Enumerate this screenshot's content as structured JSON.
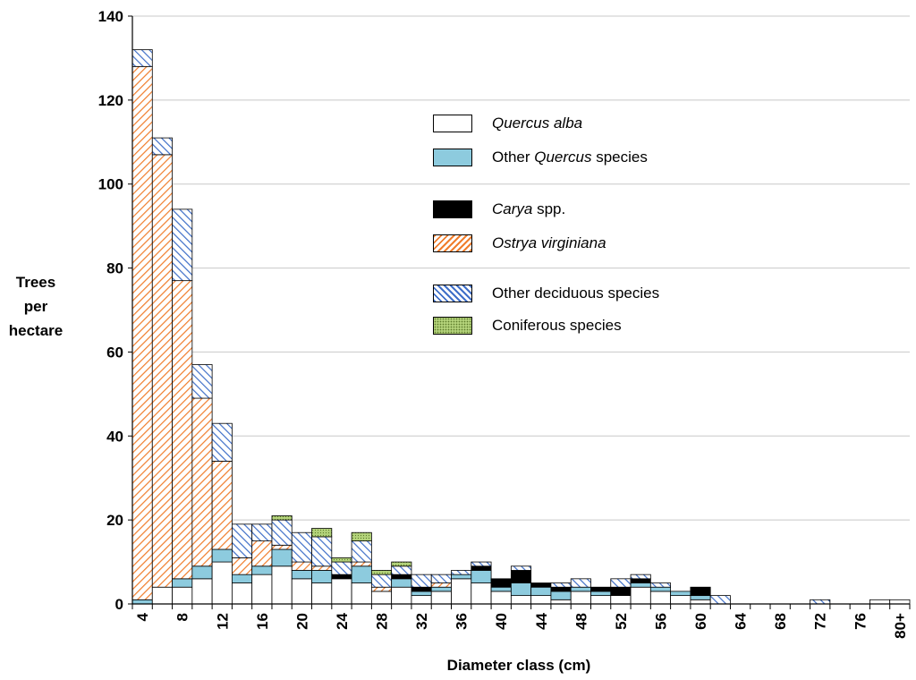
{
  "chart_data": {
    "type": "bar",
    "stacked": true,
    "ylabel_lines": [
      "Trees",
      "per",
      "hectare"
    ],
    "xlabel": "Diameter class (cm)",
    "ylim": [
      0,
      140
    ],
    "yticks": [
      0,
      20,
      40,
      60,
      80,
      100,
      120,
      140
    ],
    "grid": true,
    "legend_position": "top-right",
    "categories": [
      "4",
      "6",
      "8",
      "10",
      "12",
      "14",
      "16",
      "18",
      "20",
      "22",
      "24",
      "26",
      "28",
      "30",
      "32",
      "34",
      "36",
      "38",
      "40",
      "42",
      "44",
      "46",
      "48",
      "50",
      "52",
      "54",
      "56",
      "58",
      "60",
      "62",
      "64",
      "66",
      "68",
      "70",
      "72",
      "74",
      "76",
      "78",
      "80+"
    ],
    "tick_labels": [
      "4",
      "8",
      "12",
      "16",
      "20",
      "24",
      "28",
      "32",
      "36",
      "40",
      "44",
      "48",
      "52",
      "56",
      "60",
      "64",
      "68",
      "72",
      "76",
      "80+"
    ],
    "series": [
      {
        "name": "Quercus alba",
        "fill": "white",
        "values": [
          0,
          4,
          4,
          6,
          10,
          5,
          7,
          9,
          6,
          5,
          6,
          5,
          3,
          4,
          2,
          3,
          6,
          5,
          3,
          2,
          2,
          1,
          3,
          2,
          2,
          4,
          3,
          2,
          1,
          0,
          0,
          0,
          0,
          0,
          0,
          0,
          0,
          1,
          1
        ]
      },
      {
        "name": "Other Quercus species",
        "fill": "lightblue",
        "values": [
          1,
          0,
          2,
          3,
          3,
          2,
          2,
          4,
          2,
          3,
          0,
          4,
          0,
          2,
          1,
          1,
          1,
          3,
          1,
          3,
          2,
          2,
          1,
          1,
          0,
          1,
          1,
          1,
          1,
          0,
          0,
          0,
          0,
          0,
          0,
          0,
          0,
          0,
          0
        ]
      },
      {
        "name": "Carya spp.",
        "fill": "black",
        "values": [
          0,
          0,
          0,
          0,
          0,
          0,
          0,
          0,
          0,
          0,
          1,
          0,
          0,
          1,
          1,
          0,
          0,
          1,
          2,
          3,
          1,
          1,
          0,
          1,
          2,
          1,
          0,
          0,
          2,
          0,
          0,
          0,
          0,
          0,
          0,
          0,
          0,
          0,
          0
        ]
      },
      {
        "name": "Ostrya virginiana",
        "fill": "orange-hatch",
        "values": [
          127,
          103,
          71,
          40,
          21,
          4,
          6,
          1,
          2,
          1,
          0,
          1,
          1,
          0,
          0,
          1,
          0,
          0,
          0,
          0,
          0,
          0,
          0,
          0,
          0,
          0,
          0,
          0,
          0,
          0,
          0,
          0,
          0,
          0,
          0,
          0,
          0,
          0,
          0
        ]
      },
      {
        "name": "Other deciduous species",
        "fill": "blue-hatch",
        "values": [
          4,
          4,
          17,
          8,
          9,
          8,
          4,
          6,
          7,
          7,
          3,
          5,
          3,
          2,
          3,
          2,
          1,
          1,
          0,
          1,
          0,
          1,
          2,
          0,
          2,
          1,
          1,
          0,
          0,
          2,
          0,
          0,
          0,
          0,
          1,
          0,
          0,
          0,
          0
        ]
      },
      {
        "name": "Coniferous species",
        "fill": "green-dots",
        "values": [
          0,
          0,
          0,
          0,
          0,
          0,
          0,
          1,
          0,
          2,
          1,
          2,
          1,
          1,
          0,
          0,
          0,
          0,
          0,
          0,
          0,
          0,
          0,
          0,
          0,
          0,
          0,
          0,
          0,
          0,
          0,
          0,
          0,
          0,
          0,
          0,
          0,
          0,
          0
        ]
      }
    ],
    "colors": {
      "quercus_alba": "#ffffff",
      "other_quercus": "#8dcbde",
      "carya": "#000000",
      "ostrya_stroke": "#f07d2c",
      "deciduous_stroke": "#3f6fc8",
      "conifer_fill": "#b3d27a",
      "grid": "#c8c8c8"
    }
  },
  "legend": [
    {
      "series": 0,
      "pre": "",
      "it": "Quercus alba",
      "post": ""
    },
    {
      "series": 1,
      "pre": "Other ",
      "it": "Quercus",
      "post": " species"
    },
    {
      "series": 2,
      "pre": "",
      "it": "Carya",
      "post": " spp."
    },
    {
      "series": 3,
      "pre": "",
      "it": "Ostrya virginiana",
      "post": ""
    },
    {
      "series": 4,
      "pre": "Other deciduous species",
      "it": "",
      "post": ""
    },
    {
      "series": 5,
      "pre": "Coniferous species",
      "it": "",
      "post": ""
    }
  ]
}
